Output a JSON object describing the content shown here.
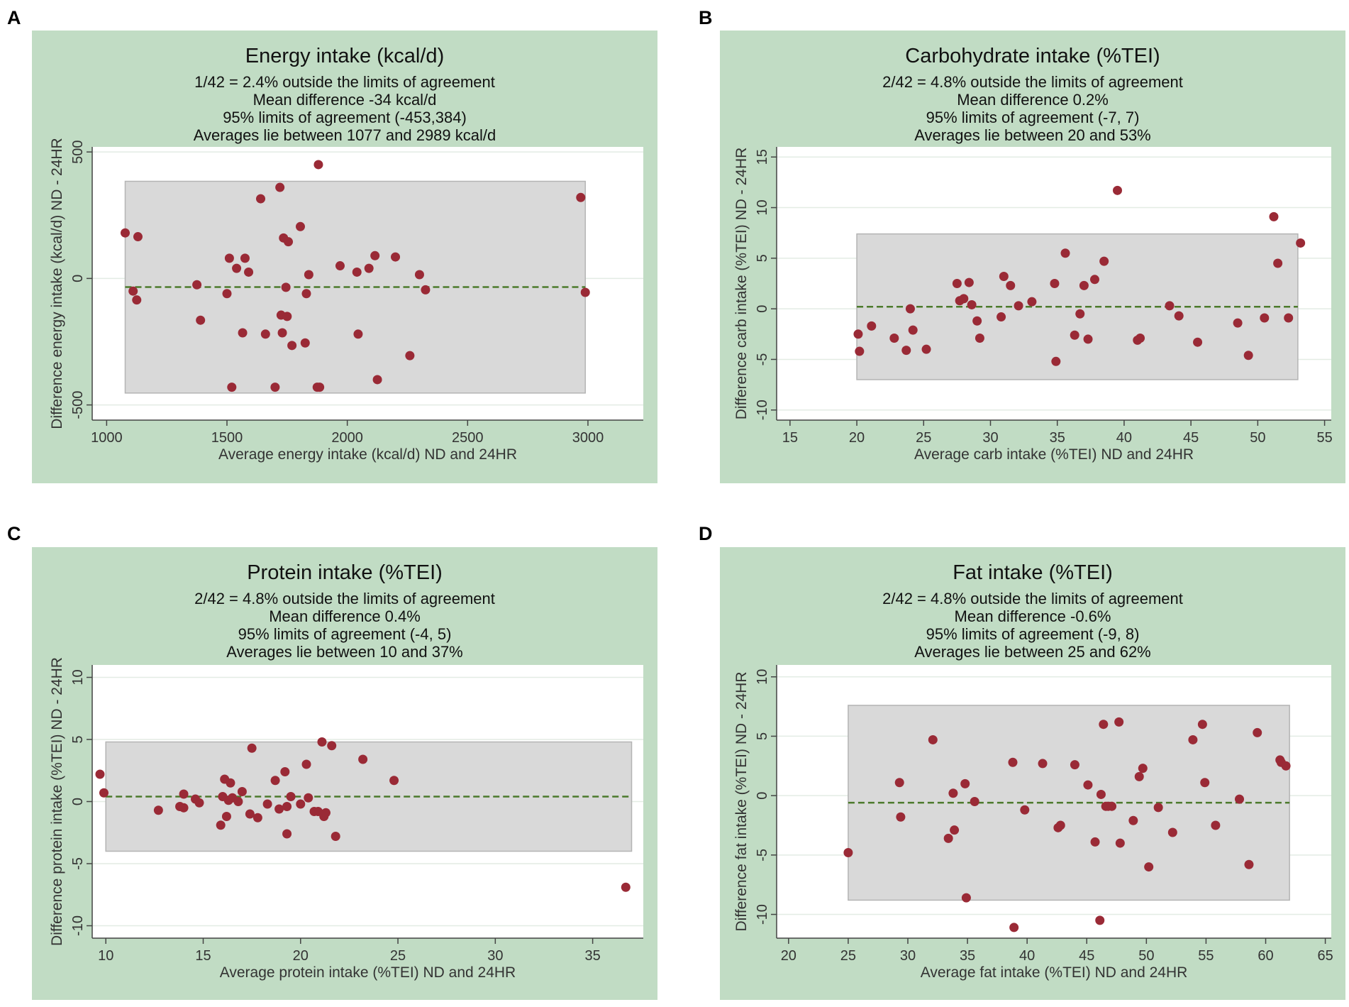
{
  "colors": {
    "panel_bg": "#c1dcc4",
    "plot_bg": "#ffffff",
    "grid": "#e3ece4",
    "loa_band": "#d9d9d9",
    "loa_border": "#b4b4b4",
    "point": "#9a2a36",
    "mean_line": "#4c7a2c",
    "axis": "#444444"
  },
  "chart_data": [
    {
      "type": "scatter",
      "panel_letter": "A",
      "title": "Energy intake (kcal/d)",
      "subtitle": [
        "1/42 =   2.4% outside the limits of agreement",
        "Mean difference -34 kcal/d",
        "95% limits of agreement (-453,384)",
        "Averages lie between 1077 and 2989 kcal/d"
      ],
      "xlabel": "Average energy intake (kcal/d) ND and 24HR",
      "ylabel": "Difference energy intake (kcal/d) ND - 24HR",
      "xlim": [
        940,
        3230
      ],
      "ylim": [
        -560,
        520
      ],
      "xticks": [
        1000,
        1500,
        2000,
        2500,
        3000
      ],
      "yticks": [
        -500,
        0,
        500
      ],
      "mean_diff": -34,
      "loa": [
        -453,
        384
      ],
      "avg_range": [
        1077,
        2989
      ],
      "x": [
        1077,
        1110,
        1125,
        1130,
        1375,
        1390,
        1500,
        1510,
        1520,
        1540,
        1565,
        1575,
        1590,
        1640,
        1660,
        1700,
        1720,
        1725,
        1730,
        1735,
        1745,
        1750,
        1755,
        1770,
        1805,
        1825,
        1830,
        1840,
        1875,
        1880,
        1885,
        1970,
        2040,
        2045,
        2090,
        2115,
        2125,
        2200,
        2260,
        2300,
        2325,
        2970,
        2989
      ],
      "y": [
        180,
        -50,
        -85,
        165,
        -25,
        -165,
        -60,
        80,
        -430,
        40,
        -215,
        80,
        25,
        315,
        -220,
        -430,
        360,
        -145,
        -215,
        160,
        -35,
        -150,
        145,
        -265,
        205,
        -255,
        -60,
        15,
        -430,
        450,
        -430,
        50,
        25,
        -220,
        40,
        90,
        -400,
        85,
        -305,
        15,
        -45,
        320,
        -55
      ]
    },
    {
      "type": "scatter",
      "panel_letter": "B",
      "title": "Carbohydrate intake (%TEI)",
      "subtitle": [
        "2/42 =   4.8% outside the limits of agreement",
        "Mean difference  0.2%",
        "95% limits of agreement (-7, 7)",
        "Averages lie between 20 and 53%"
      ],
      "xlabel": "Average carb intake (%TEI) ND and 24HR",
      "ylabel": "Difference carb intake (%TEI) ND - 24HR",
      "xlim": [
        14,
        55.5
      ],
      "ylim": [
        -11,
        16
      ],
      "xticks": [
        15,
        20,
        25,
        30,
        35,
        40,
        45,
        50,
        55
      ],
      "yticks": [
        -10,
        -5,
        0,
        5,
        10,
        15
      ],
      "mean_diff": 0.2,
      "loa": [
        -7,
        7.4
      ],
      "avg_range": [
        20,
        53
      ],
      "x": [
        20.1,
        20.2,
        21.1,
        22.8,
        23.7,
        24.0,
        24.2,
        25.2,
        27.5,
        27.7,
        28.0,
        28.4,
        28.6,
        29.0,
        29.2,
        30.8,
        31.0,
        31.5,
        32.1,
        33.1,
        34.8,
        34.9,
        35.6,
        36.3,
        36.7,
        37.0,
        37.3,
        37.8,
        38.5,
        39.5,
        41.0,
        41.2,
        43.4,
        44.1,
        45.5,
        48.5,
        49.3,
        50.5,
        51.2,
        51.5,
        52.3,
        53.2
      ],
      "y": [
        -2.5,
        -4.2,
        -1.7,
        -2.9,
        -4.1,
        0.0,
        -2.1,
        -4.0,
        2.5,
        0.8,
        1.0,
        2.6,
        0.4,
        -1.2,
        -2.9,
        -0.8,
        3.2,
        2.3,
        0.3,
        0.7,
        2.5,
        -5.2,
        5.5,
        -2.6,
        -0.5,
        2.3,
        -3.0,
        2.9,
        4.7,
        11.7,
        -3.1,
        -2.9,
        0.3,
        -0.7,
        -3.3,
        -1.4,
        -4.6,
        -0.9,
        9.1,
        4.5,
        -0.9,
        6.5
      ]
    },
    {
      "type": "scatter",
      "panel_letter": "C",
      "title": "Protein intake (%TEI)",
      "subtitle": [
        "2/42 =   4.8% outside the limits of agreement",
        "Mean difference  0.4%",
        "95% limits of agreement (-4, 5)",
        "Averages lie between 10 and 37%"
      ],
      "xlabel": "Average protein intake (%TEI) ND and 24HR",
      "ylabel": "Difference protein intake (%TEI) ND - 24HR",
      "xlim": [
        9.3,
        37.6
      ],
      "ylim": [
        -11,
        11
      ],
      "xticks": [
        10,
        15,
        20,
        25,
        30,
        35
      ],
      "yticks": [
        -10,
        -5,
        0,
        5,
        10
      ],
      "mean_diff": 0.4,
      "loa": [
        -4.0,
        4.8
      ],
      "avg_range": [
        10,
        37
      ],
      "x": [
        9.7,
        9.9,
        12.7,
        13.8,
        14.0,
        14.0,
        14.6,
        14.8,
        15.9,
        16.0,
        16.1,
        16.2,
        16.3,
        16.4,
        16.5,
        16.8,
        17.0,
        17.4,
        17.5,
        17.8,
        18.3,
        18.7,
        18.9,
        19.2,
        19.3,
        19.3,
        19.5,
        20.0,
        20.3,
        20.4,
        20.7,
        20.9,
        21.1,
        21.2,
        21.3,
        21.6,
        21.8,
        23.2,
        24.8,
        36.7
      ],
      "y": [
        2.2,
        0.7,
        -0.7,
        -0.4,
        0.6,
        -0.5,
        0.2,
        -0.1,
        -1.9,
        0.4,
        1.8,
        -1.2,
        0.1,
        1.5,
        0.3,
        0.0,
        0.8,
        -1.0,
        4.3,
        -1.3,
        -0.2,
        1.7,
        -0.6,
        2.4,
        -2.6,
        -0.4,
        0.4,
        -0.2,
        3.0,
        0.3,
        -0.8,
        -0.8,
        4.8,
        -1.2,
        -0.9,
        4.5,
        -2.8,
        3.4,
        1.7,
        -6.9
      ]
    },
    {
      "type": "scatter",
      "panel_letter": "D",
      "title": "Fat intake (%TEI)",
      "subtitle": [
        "2/42 =   4.8% outside the limits of agreement",
        "Mean difference -0.6%",
        "95% limits of agreement (-9, 8)",
        "Averages lie between 25 and 62%"
      ],
      "xlabel": "Average fat intake (%TEI) ND and 24HR",
      "ylabel": "Difference fat intake (%TEI) ND - 24HR",
      "xlim": [
        19,
        65.5
      ],
      "ylim": [
        -12,
        11
      ],
      "xticks": [
        20,
        25,
        30,
        35,
        40,
        45,
        50,
        55,
        60,
        65
      ],
      "yticks": [
        -10,
        -5,
        0,
        5,
        10
      ],
      "mean_diff": -0.6,
      "loa": [
        -8.8,
        7.6
      ],
      "avg_range": [
        25,
        62
      ],
      "x": [
        25.0,
        29.3,
        29.4,
        32.1,
        33.4,
        33.8,
        33.9,
        34.8,
        34.9,
        35.6,
        38.8,
        38.9,
        39.8,
        41.3,
        42.6,
        42.8,
        44.0,
        45.1,
        45.7,
        46.1,
        46.2,
        46.4,
        46.6,
        46.8,
        47.1,
        47.7,
        47.8,
        48.9,
        49.4,
        49.7,
        50.2,
        51.0,
        52.2,
        53.9,
        54.7,
        54.9,
        55.8,
        57.8,
        58.6,
        59.3,
        61.2,
        61.3,
        61.7
      ],
      "y": [
        -4.8,
        1.1,
        -1.8,
        4.7,
        -3.6,
        0.2,
        -2.9,
        1.0,
        -8.6,
        -0.5,
        2.8,
        -11.1,
        -1.2,
        2.7,
        -2.7,
        -2.5,
        2.6,
        0.9,
        -3.9,
        -10.5,
        0.1,
        6.0,
        -0.9,
        -0.9,
        -0.9,
        6.2,
        -4.0,
        -2.1,
        1.6,
        2.3,
        -6.0,
        -1.0,
        -3.1,
        4.7,
        6.0,
        1.1,
        -2.5,
        -0.3,
        -5.8,
        5.3,
        3.0,
        2.8,
        2.5
      ]
    }
  ]
}
